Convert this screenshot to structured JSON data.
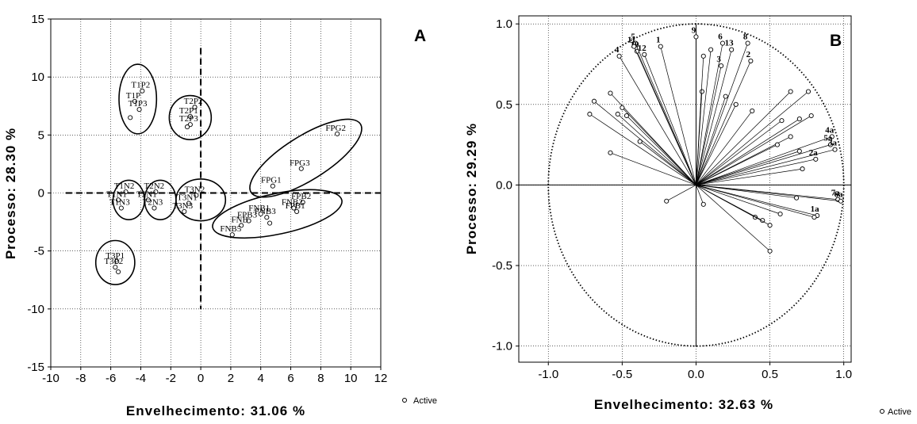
{
  "chart_data": [
    {
      "type": "scatter",
      "panel_label": "A",
      "xlabel": "Envelhecimento: 31.06 %",
      "ylabel": "Processo: 28.30 %",
      "xlim": [
        -10,
        12
      ],
      "ylim": [
        -15,
        15
      ],
      "xticks": [
        -10,
        -8,
        -6,
        -4,
        -2,
        0,
        2,
        4,
        6,
        8,
        10,
        12
      ],
      "yticks": [
        -15,
        -10,
        -5,
        0,
        5,
        10,
        15
      ],
      "legend": "Active",
      "points": [
        {
          "label": "T1P2",
          "x": -3.9,
          "y": 8.8
        },
        {
          "label": "T1P",
          "x": -4.4,
          "y": 7.9
        },
        {
          "label": "T1P3",
          "x": -4.1,
          "y": 7.2
        },
        {
          "label": "",
          "x": -4.7,
          "y": 6.5
        },
        {
          "label": "T2P2",
          "x": -0.4,
          "y": 7.4
        },
        {
          "label": "T2P1",
          "x": -0.7,
          "y": 6.6
        },
        {
          "label": "T2P3",
          "x": -0.7,
          "y": 5.9
        },
        {
          "label": "",
          "x": -0.9,
          "y": 5.7
        },
        {
          "label": "FPG2",
          "x": 9.1,
          "y": 5.1
        },
        {
          "label": "FPG3",
          "x": 6.7,
          "y": 2.1
        },
        {
          "label": "FPG1",
          "x": 4.8,
          "y": 0.6
        },
        {
          "label": "T1N2",
          "x": -5.0,
          "y": 0.1
        },
        {
          "label": "T1N1",
          "x": -5.5,
          "y": -0.6
        },
        {
          "label": "T1N3",
          "x": -5.3,
          "y": -1.3
        },
        {
          "label": "T2N2",
          "x": -3.0,
          "y": 0.1
        },
        {
          "label": "T2N1",
          "x": -3.5,
          "y": -0.6
        },
        {
          "label": "T2N3",
          "x": -3.1,
          "y": -1.3
        },
        {
          "label": "T3N2",
          "x": -0.3,
          "y": -0.2
        },
        {
          "label": "T3N1",
          "x": -0.8,
          "y": -0.9
        },
        {
          "label": "T3N3",
          "x": -1.1,
          "y": -1.6
        },
        {
          "label": "FPB2",
          "x": 6.8,
          "y": -0.8
        },
        {
          "label": "FPB1",
          "x": 6.4,
          "y": -1.6
        },
        {
          "label": "FNB2",
          "x": 6.2,
          "y": -1.3
        },
        {
          "label": "FNB3",
          "x": 4.4,
          "y": -2.1
        },
        {
          "label": "FNB1",
          "x": 4.0,
          "y": -1.8
        },
        {
          "label": "FPB3",
          "x": 3.2,
          "y": -2.4
        },
        {
          "label": "FNB",
          "x": 2.7,
          "y": -2.8
        },
        {
          "label": "FNB5",
          "x": 2.1,
          "y": -3.6
        },
        {
          "label": "",
          "x": 4.6,
          "y": -2.6
        },
        {
          "label": "T3P1",
          "x": -5.6,
          "y": -5.9
        },
        {
          "label": "T3P2",
          "x": -5.7,
          "y": -6.4
        },
        {
          "label": "",
          "x": -5.5,
          "y": -6.8
        }
      ],
      "groups": [
        {
          "cx": -4.2,
          "cy": 8.1,
          "rx": 1.25,
          "ry": 3.0
        },
        {
          "cx": -0.7,
          "cy": 6.5,
          "rx": 1.4,
          "ry": 1.9
        },
        {
          "cx": 7.0,
          "cy": 3.0,
          "rx": 4.3,
          "ry": 1.9,
          "angle": -32
        },
        {
          "cx": -4.8,
          "cy": -0.6,
          "rx": 1.05,
          "ry": 1.7
        },
        {
          "cx": -2.7,
          "cy": -0.6,
          "rx": 1.05,
          "ry": 1.7
        },
        {
          "cx": 0.0,
          "cy": -0.6,
          "rx": 1.65,
          "ry": 1.8
        },
        {
          "cx": 5.1,
          "cy": -1.8,
          "rx": 4.4,
          "ry": 1.75,
          "angle": -12
        },
        {
          "cx": -5.7,
          "cy": -6.0,
          "rx": 1.3,
          "ry": 1.9
        }
      ]
    },
    {
      "type": "scatter",
      "panel_label": "B",
      "xlabel": "Envelhecimento: 32.63 %",
      "ylabel": "Processo: 29.29 %",
      "xlim": [
        -1.2,
        1.05
      ],
      "ylim": [
        -1.1,
        1.05
      ],
      "xticks": [
        -1.0,
        -0.5,
        0.0,
        0.5,
        1.0
      ],
      "yticks": [
        -1.0,
        -0.5,
        0.0,
        0.5,
        1.0
      ],
      "legend": "Active",
      "unit_circle": true,
      "vectors": [
        {
          "label": "9",
          "x": 0.0,
          "y": 0.92
        },
        {
          "label": "6",
          "x": 0.18,
          "y": 0.88
        },
        {
          "label": "8",
          "x": 0.35,
          "y": 0.88
        },
        {
          "label": "13",
          "x": 0.24,
          "y": 0.84
        },
        {
          "label": "2",
          "x": 0.37,
          "y": 0.77
        },
        {
          "label": "3",
          "x": 0.17,
          "y": 0.74
        },
        {
          "label": "1",
          "x": -0.24,
          "y": 0.86
        },
        {
          "label": "4",
          "x": -0.52,
          "y": 0.8
        },
        {
          "label": "5",
          "x": -0.41,
          "y": 0.88
        },
        {
          "label": "10",
          "x": -0.4,
          "y": 0.83
        },
        {
          "label": "12",
          "x": -0.35,
          "y": 0.81
        },
        {
          "label": "11",
          "x": -0.42,
          "y": 0.86
        },
        {
          "label": "4a",
          "x": 0.92,
          "y": 0.3
        },
        {
          "label": "5a",
          "x": 0.91,
          "y": 0.25
        },
        {
          "label": "3a",
          "x": 0.94,
          "y": 0.22
        },
        {
          "label": "2a",
          "x": 0.81,
          "y": 0.16
        },
        {
          "label": "1a",
          "x": 0.82,
          "y": -0.19
        },
        {
          "label": "7a",
          "x": 0.96,
          "y": -0.09
        },
        {
          "label": "6a",
          "x": 0.98,
          "y": -0.1
        },
        {
          "label": "",
          "x": -0.72,
          "y": 0.44
        },
        {
          "label": "",
          "x": -0.69,
          "y": 0.52
        },
        {
          "label": "",
          "x": -0.58,
          "y": 0.57
        },
        {
          "label": "",
          "x": -0.53,
          "y": 0.44
        },
        {
          "label": "",
          "x": -0.5,
          "y": 0.48
        },
        {
          "label": "",
          "x": -0.47,
          "y": 0.43
        },
        {
          "label": "",
          "x": -0.38,
          "y": 0.27
        },
        {
          "label": "",
          "x": -0.58,
          "y": 0.2
        },
        {
          "label": "",
          "x": -0.2,
          "y": -0.1
        },
        {
          "label": "",
          "x": 0.05,
          "y": -0.12
        },
        {
          "label": "",
          "x": 0.04,
          "y": 0.58
        },
        {
          "label": "",
          "x": 0.05,
          "y": 0.8
        },
        {
          "label": "",
          "x": 0.1,
          "y": 0.84
        },
        {
          "label": "",
          "x": 0.2,
          "y": 0.55
        },
        {
          "label": "",
          "x": 0.27,
          "y": 0.5
        },
        {
          "label": "",
          "x": 0.38,
          "y": 0.46
        },
        {
          "label": "",
          "x": 0.64,
          "y": 0.58
        },
        {
          "label": "",
          "x": 0.76,
          "y": 0.58
        },
        {
          "label": "",
          "x": 0.58,
          "y": 0.4
        },
        {
          "label": "",
          "x": 0.7,
          "y": 0.41
        },
        {
          "label": "",
          "x": 0.78,
          "y": 0.43
        },
        {
          "label": "",
          "x": 0.64,
          "y": 0.3
        },
        {
          "label": "",
          "x": 0.55,
          "y": 0.25
        },
        {
          "label": "",
          "x": 0.7,
          "y": 0.21
        },
        {
          "label": "",
          "x": 0.72,
          "y": 0.1
        },
        {
          "label": "",
          "x": 0.57,
          "y": -0.18
        },
        {
          "label": "",
          "x": 0.4,
          "y": -0.2
        },
        {
          "label": "",
          "x": 0.45,
          "y": -0.22
        },
        {
          "label": "",
          "x": 0.5,
          "y": -0.25
        },
        {
          "label": "",
          "x": 0.5,
          "y": -0.41
        },
        {
          "label": "",
          "x": 0.68,
          "y": -0.08
        },
        {
          "label": "",
          "x": 0.8,
          "y": -0.2
        }
      ]
    }
  ]
}
